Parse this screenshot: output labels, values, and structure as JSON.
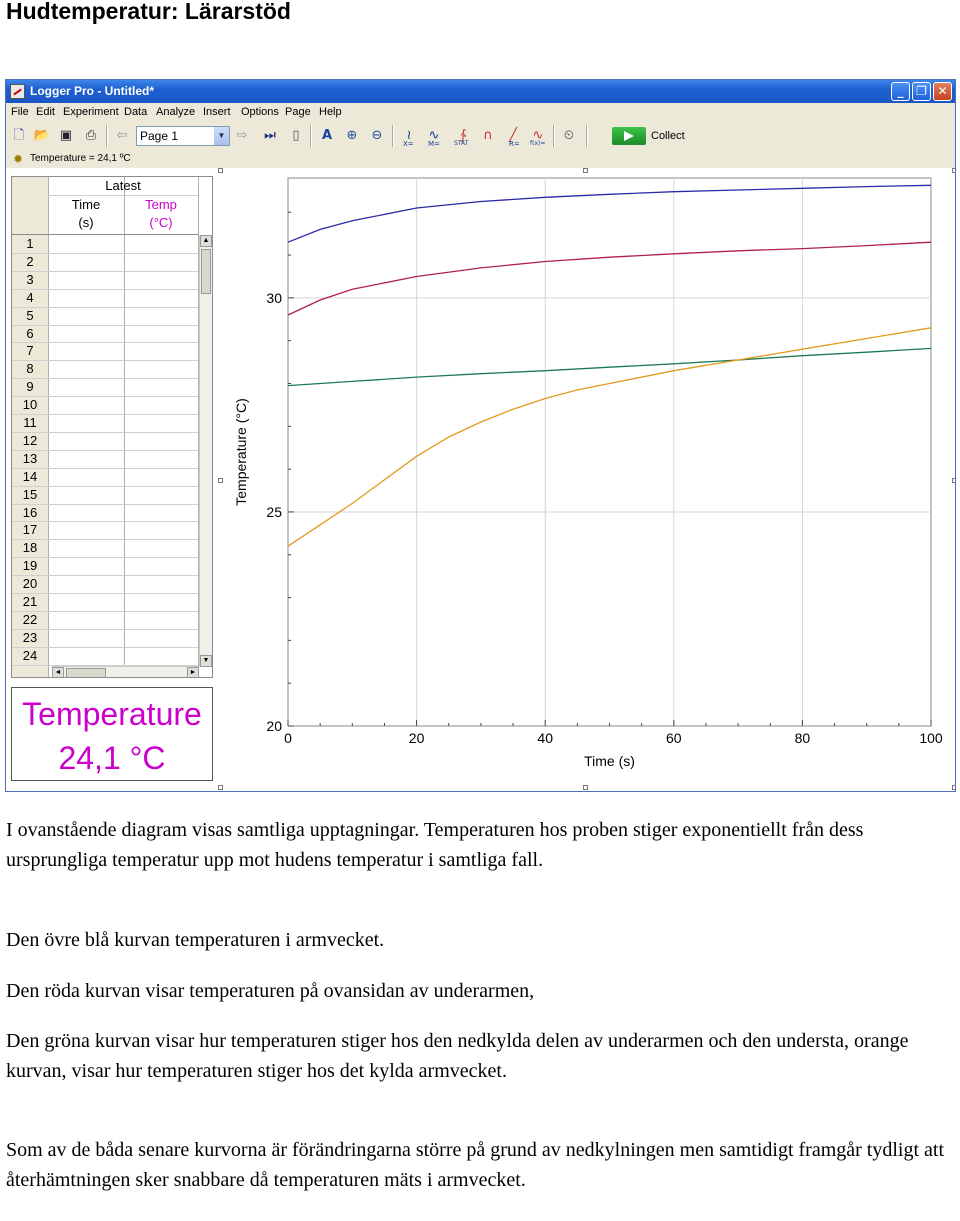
{
  "document": {
    "heading": "Hudtemperatur: Lärarstöd",
    "paragraphs": [
      "I ovanstående diagram  visas samtliga upptagningar. Temperaturen hos proben stiger exponentiellt från dess ursprungliga temperatur upp mot hudens temperatur i samtliga fall.",
      "Den övre blå kurvan temperaturen i armvecket.",
      "Den röda kurvan visar temperaturen på ovansidan av underarmen,",
      "Den gröna kurvan visar hur temperaturen stiger hos den nedkylda delen av underarmen och den understa, orange kurvan, visar hur temperaturen stiger hos det kylda armvecket.",
      "Som av de båda senare kurvorna är förändringarna större på grund av nedkylningen men samtidigt framgår tydligt att återhämtningen sker snabbare då temperaturen mäts i armvecket."
    ]
  },
  "window": {
    "title": "Logger Pro - Untitled*",
    "controls": {
      "minimize": "_",
      "maximize": "❐",
      "close": "✕"
    },
    "menu": [
      "File",
      "Edit",
      "Experiment",
      "Data",
      "Analyze",
      "Insert",
      "Options",
      "Page",
      "Help"
    ],
    "toolbar": {
      "page_select": "Page 1",
      "collect_label": "Collect",
      "icons": [
        "new-file-icon",
        "open-folder-icon",
        "save-icon",
        "print-icon",
        "back-arrow-icon",
        "forward-arrow-icon",
        "autoscale-icon",
        "zoom-in-icon",
        "zoom-out-icon",
        "examine-icon",
        "tangent-icon",
        "integral-icon",
        "stats-icon",
        "linear-fit-icon",
        "curve-fit-icon",
        "model-icon",
        "replay-icon"
      ],
      "small_labels": {
        "examine": "X=",
        "tangent": "M=",
        "stats": "STAT",
        "linear": "R=",
        "curve": "f(x)="
      }
    },
    "status": "Temperature = 24,1 ºC",
    "colors": {
      "titlebar": "#1e5fd0",
      "meter_text": "#cc00cc",
      "temp_header": "#cc00cc"
    }
  },
  "table": {
    "group_header": "Latest",
    "columns": [
      {
        "name": "Time",
        "unit": "(s)"
      },
      {
        "name": "Temp",
        "unit": "(°C)"
      }
    ],
    "row_numbers": [
      "1",
      "2",
      "3",
      "4",
      "5",
      "6",
      "7",
      "8",
      "9",
      "10",
      "11",
      "12",
      "13",
      "14",
      "15",
      "16",
      "17",
      "18",
      "19",
      "20",
      "21",
      "22",
      "23",
      "24"
    ],
    "scroll_up": "▲",
    "scroll_down": "▼",
    "scroll_left": "◄",
    "scroll_right": "►"
  },
  "meter": {
    "label": "Temperature",
    "value": "24,1 °C"
  },
  "chart_data": {
    "type": "line",
    "title": "",
    "xlabel": "Time (s)",
    "ylabel": "Temperature (°C)",
    "xlim": [
      0,
      100
    ],
    "ylim": [
      20,
      32.8
    ],
    "x_ticks": [
      0,
      20,
      40,
      60,
      80,
      100
    ],
    "y_ticks": [
      20,
      25,
      30
    ],
    "grid": true,
    "legend": "none",
    "series": [
      {
        "color": "#2b2ba8",
        "x": [
          0,
          5,
          10,
          20,
          30,
          40,
          50,
          60,
          70,
          80,
          90,
          100
        ],
        "y": [
          31.3,
          31.6,
          31.8,
          32.1,
          32.25,
          32.35,
          32.42,
          32.48,
          32.52,
          32.56,
          32.6,
          32.63
        ]
      },
      {
        "color": "#b0204a",
        "x": [
          0,
          5,
          10,
          20,
          30,
          40,
          50,
          60,
          70,
          80,
          90,
          100
        ],
        "y": [
          29.6,
          29.95,
          30.2,
          30.5,
          30.7,
          30.85,
          30.95,
          31.03,
          31.1,
          31.15,
          31.22,
          31.3
        ]
      },
      {
        "color": "#1e7a52",
        "x": [
          0,
          10,
          20,
          30,
          40,
          50,
          60,
          70,
          80,
          90,
          100
        ],
        "y": [
          27.95,
          28.05,
          28.15,
          28.23,
          28.3,
          28.38,
          28.46,
          28.55,
          28.65,
          28.73,
          28.82
        ]
      },
      {
        "color": "#e39a1e",
        "x": [
          0,
          5,
          10,
          15,
          20,
          25,
          30,
          35,
          40,
          45,
          50,
          60,
          70,
          80,
          90,
          100
        ],
        "y": [
          24.2,
          24.7,
          25.2,
          25.75,
          26.3,
          26.75,
          27.1,
          27.4,
          27.65,
          27.85,
          28.0,
          28.3,
          28.55,
          28.8,
          29.05,
          29.3
        ]
      }
    ]
  }
}
